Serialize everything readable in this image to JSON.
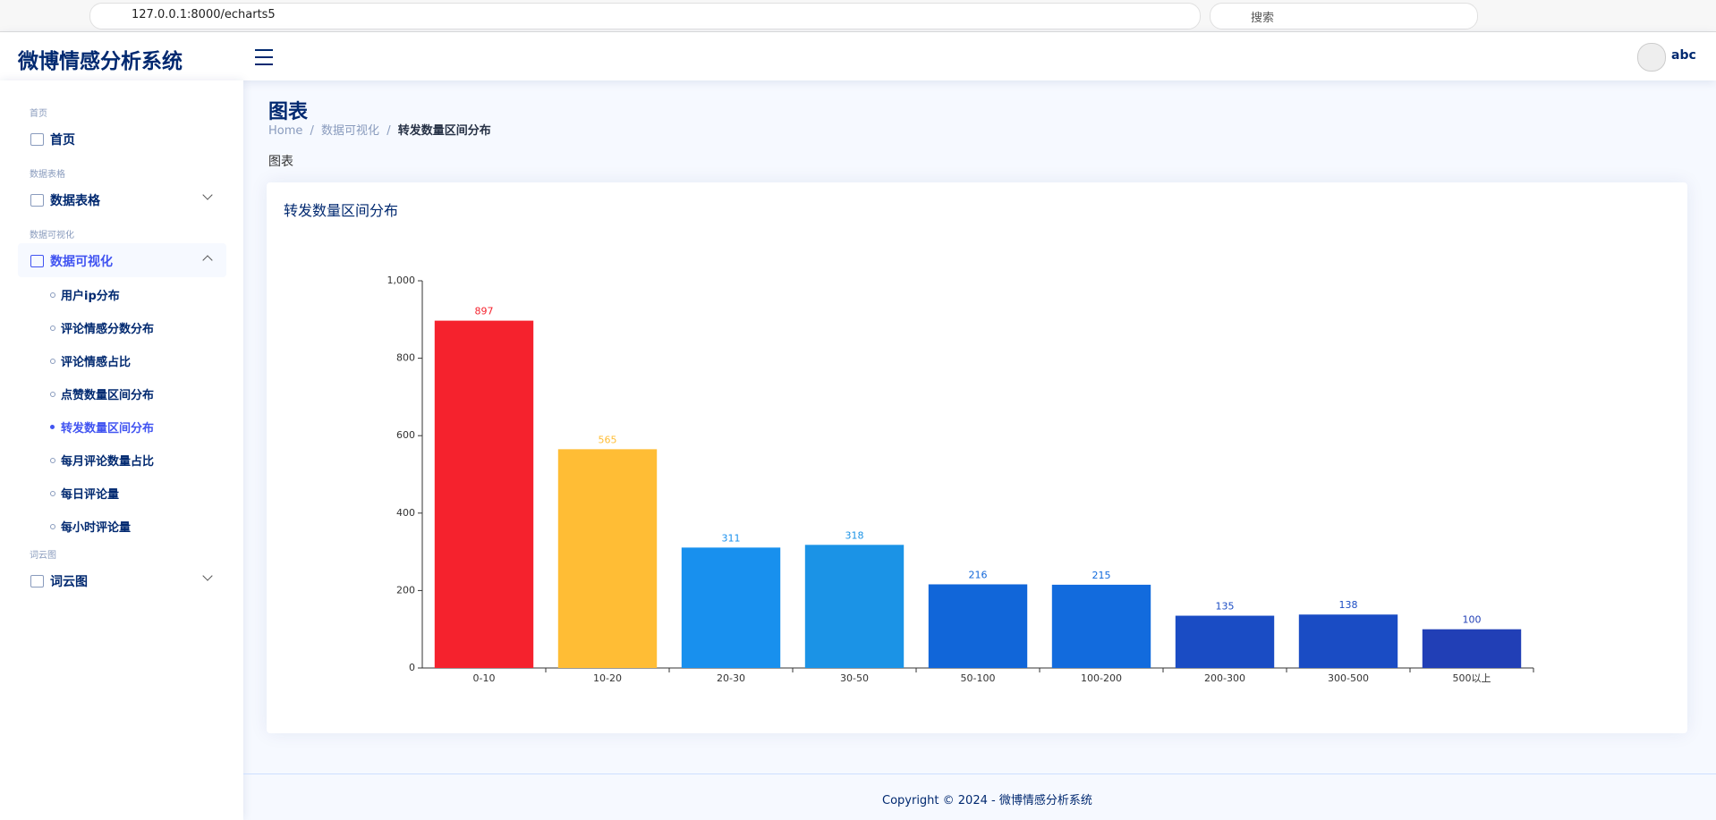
{
  "browser": {
    "url": "127.0.0.1:8000/echarts5",
    "search": "搜索"
  },
  "header": {
    "title": "微博情感分析系统",
    "user": "abc"
  },
  "sidebar": {
    "groups": [
      {
        "heading": "首页",
        "menu": "首页"
      },
      {
        "heading": "数据表格",
        "menu": "数据表格"
      },
      {
        "heading": "数据可视化",
        "menu": "数据可视化",
        "submenu": [
          "用户ip分布",
          "评论情感分数分布",
          "评论情感占比",
          "点赞数量区间分布",
          "转发数量区间分布",
          "每月评论数量占比",
          "每日评论量",
          "每小时评论量"
        ]
      },
      {
        "heading": "词云图",
        "menu": "词云图"
      }
    ]
  },
  "page": {
    "title": "图表",
    "breadcrumb": [
      "Home",
      "数据可视化",
      "转发数量区间分布"
    ],
    "label": "图表"
  },
  "chart_data": {
    "type": "bar",
    "title": "转发数量区间分布",
    "categories": [
      "0-10",
      "10-20",
      "20-30",
      "30-50",
      "50-100",
      "100-200",
      "200-300",
      "300-500",
      "500以上"
    ],
    "values": [
      897,
      565,
      311,
      318,
      216,
      215,
      135,
      138,
      100
    ],
    "colors": [
      "#f5222d",
      "#ffbd35",
      "#1890ee",
      "#1b93e6",
      "#1166d9",
      "#126bdd",
      "#1a4cc4",
      "#1a4cc4",
      "#213fb6"
    ],
    "ylim": [
      0,
      1000
    ],
    "yticks": [
      0,
      200,
      400,
      600,
      800,
      {
        "value": 1000,
        "label": "1,000"
      }
    ]
  },
  "footer": {
    "text": "Copyright © 2024 - 微博情感分析系统"
  }
}
